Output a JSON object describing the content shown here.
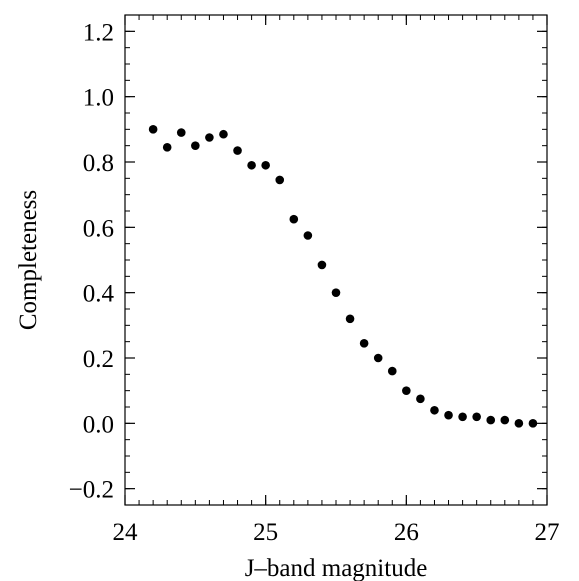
{
  "chart_data": {
    "type": "scatter",
    "title": "",
    "xlabel": "J–band magnitude",
    "ylabel": "Completeness",
    "xlim": [
      24,
      27
    ],
    "ylim": [
      -0.25,
      1.25
    ],
    "x_ticks": [
      24,
      25,
      26,
      27
    ],
    "x_tick_labels": [
      "24",
      "25",
      "26",
      "27"
    ],
    "x_minor_step": 0.1,
    "y_ticks": [
      -0.2,
      0.0,
      0.2,
      0.4,
      0.6,
      0.8,
      1.0,
      1.2
    ],
    "y_tick_labels": [
      "−0.2",
      "0.0",
      "0.2",
      "0.4",
      "0.6",
      "0.8",
      "1.0",
      "1.2"
    ],
    "y_minor_step": 0.05,
    "grid": false,
    "marker_color": "#000000",
    "series": [
      {
        "x": [
          24.2,
          24.3,
          24.4,
          24.5,
          24.6,
          24.7,
          24.8,
          24.9,
          25.0,
          25.1,
          25.2,
          25.3,
          25.4,
          25.5,
          25.6,
          25.7,
          25.8,
          25.9,
          26.0,
          26.1,
          26.2,
          26.3,
          26.4,
          26.5,
          26.6,
          26.7,
          26.8,
          26.9
        ],
        "y": [
          0.9,
          0.845,
          0.89,
          0.85,
          0.875,
          0.885,
          0.835,
          0.79,
          0.79,
          0.745,
          0.625,
          0.575,
          0.485,
          0.4,
          0.32,
          0.245,
          0.2,
          0.16,
          0.1,
          0.075,
          0.04,
          0.025,
          0.02,
          0.02,
          0.01,
          0.01,
          0.0,
          0.0
        ]
      }
    ]
  }
}
